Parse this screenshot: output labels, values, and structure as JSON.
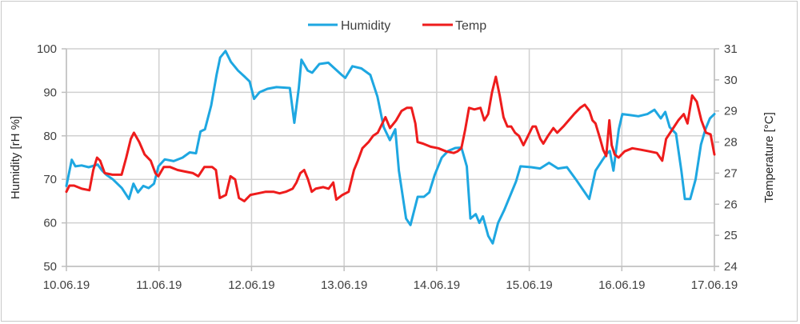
{
  "chart_data": {
    "type": "line",
    "title": "",
    "legend": {
      "position": "top",
      "entries": [
        "Humidity",
        "Temp"
      ]
    },
    "xlabel": "",
    "ylabel": "Humidity [rH %]",
    "y2label": "Temperature [°C]",
    "ylim": [
      50,
      100
    ],
    "y2lim": [
      24,
      31
    ],
    "yticks": [
      50,
      60,
      70,
      80,
      90,
      100
    ],
    "y2ticks": [
      24,
      25,
      26,
      27,
      28,
      29,
      30,
      31
    ],
    "x_ticks": [
      "10.06.19",
      "11.06.19",
      "12.06.19",
      "13.06.19",
      "14.06.19",
      "15.06.19",
      "16.06.19",
      "17.06.19"
    ],
    "grid": true,
    "series": [
      {
        "name": "Humidity",
        "axis": "left",
        "color": "#1ea7e1",
        "points": [
          [
            0.0,
            68.5
          ],
          [
            0.06,
            74.5
          ],
          [
            0.1,
            73
          ],
          [
            0.17,
            73.2
          ],
          [
            0.25,
            72.8
          ],
          [
            0.35,
            73.4
          ],
          [
            0.4,
            72
          ],
          [
            0.45,
            71
          ],
          [
            0.52,
            70
          ],
          [
            0.62,
            68
          ],
          [
            0.7,
            65.5
          ],
          [
            0.75,
            69
          ],
          [
            0.8,
            67
          ],
          [
            0.86,
            68.5
          ],
          [
            0.92,
            68
          ],
          [
            0.98,
            69
          ],
          [
            1.03,
            73
          ],
          [
            1.1,
            74.6
          ],
          [
            1.2,
            74.2
          ],
          [
            1.3,
            75
          ],
          [
            1.38,
            76.2
          ],
          [
            1.45,
            76
          ],
          [
            1.5,
            81
          ],
          [
            1.55,
            81.5
          ],
          [
            1.62,
            87
          ],
          [
            1.68,
            94
          ],
          [
            1.72,
            98
          ],
          [
            1.78,
            99.5
          ],
          [
            1.84,
            97
          ],
          [
            1.92,
            95
          ],
          [
            2.0,
            93.5
          ],
          [
            2.05,
            92.5
          ],
          [
            2.1,
            88.5
          ],
          [
            2.16,
            90
          ],
          [
            2.25,
            90.8
          ],
          [
            2.35,
            91.2
          ],
          [
            2.5,
            91
          ],
          [
            2.55,
            83
          ],
          [
            2.6,
            91
          ],
          [
            2.63,
            97.5
          ],
          [
            2.7,
            95
          ],
          [
            2.75,
            94.5
          ],
          [
            2.83,
            96.5
          ],
          [
            2.93,
            96.8
          ],
          [
            3.0,
            95.5
          ],
          [
            3.08,
            94
          ],
          [
            3.12,
            93.3
          ],
          [
            3.2,
            96
          ],
          [
            3.3,
            95.5
          ],
          [
            3.4,
            94
          ],
          [
            3.48,
            89
          ],
          [
            3.55,
            82
          ],
          [
            3.62,
            79
          ],
          [
            3.68,
            81.5
          ],
          [
            3.72,
            72
          ],
          [
            3.8,
            61
          ],
          [
            3.85,
            59.5
          ],
          [
            3.93,
            66
          ],
          [
            4.0,
            66
          ],
          [
            4.06,
            67
          ],
          [
            4.12,
            71
          ],
          [
            4.2,
            75
          ],
          [
            4.27,
            76.5
          ],
          [
            4.35,
            77.2
          ],
          [
            4.42,
            77.3
          ],
          [
            4.48,
            73
          ],
          [
            4.52,
            61
          ],
          [
            4.58,
            62
          ],
          [
            4.62,
            60
          ],
          [
            4.66,
            61.5
          ],
          [
            4.72,
            57
          ],
          [
            4.77,
            55.3
          ],
          [
            4.83,
            60
          ],
          [
            4.9,
            63
          ],
          [
            4.98,
            67
          ],
          [
            5.03,
            69.5
          ],
          [
            5.08,
            73
          ],
          [
            5.2,
            72.8
          ],
          [
            5.3,
            72.5
          ],
          [
            5.4,
            73.8
          ],
          [
            5.5,
            72.5
          ],
          [
            5.6,
            72.8
          ],
          [
            5.7,
            70
          ],
          [
            5.8,
            67
          ],
          [
            5.85,
            65.5
          ],
          [
            5.92,
            72
          ],
          [
            6.0,
            74.5
          ],
          [
            6.05,
            76
          ],
          [
            6.08,
            76.5
          ],
          [
            6.12,
            72
          ],
          [
            6.18,
            81.5
          ],
          [
            6.22,
            85
          ],
          [
            6.3,
            84.8
          ],
          [
            6.4,
            84.5
          ],
          [
            6.5,
            85
          ],
          [
            6.58,
            86
          ],
          [
            6.65,
            84
          ],
          [
            6.7,
            85.5
          ],
          [
            6.75,
            82
          ],
          [
            6.82,
            80.5
          ],
          [
            6.88,
            72
          ],
          [
            6.92,
            65.5
          ],
          [
            6.98,
            65.5
          ],
          [
            7.04,
            70
          ],
          [
            7.1,
            78
          ],
          [
            7.15,
            81.5
          ],
          [
            7.2,
            84
          ],
          [
            7.25,
            85
          ]
        ]
      },
      {
        "name": "Temp",
        "axis": "right",
        "color": "#ee1c1c",
        "points": [
          [
            0.0,
            26.4
          ],
          [
            0.04,
            26.6
          ],
          [
            0.1,
            26.6
          ],
          [
            0.2,
            26.5
          ],
          [
            0.3,
            26.45
          ],
          [
            0.35,
            27.1
          ],
          [
            0.4,
            27.5
          ],
          [
            0.44,
            27.4
          ],
          [
            0.5,
            27.0
          ],
          [
            0.6,
            26.95
          ],
          [
            0.72,
            26.95
          ],
          [
            0.78,
            27.5
          ],
          [
            0.84,
            28.1
          ],
          [
            0.88,
            28.3
          ],
          [
            0.95,
            28.0
          ],
          [
            1.02,
            27.6
          ],
          [
            1.1,
            27.4
          ],
          [
            1.16,
            27.0
          ],
          [
            1.2,
            26.9
          ],
          [
            1.27,
            27.2
          ],
          [
            1.35,
            27.2
          ],
          [
            1.45,
            27.1
          ],
          [
            1.55,
            27.05
          ],
          [
            1.65,
            27.0
          ],
          [
            1.72,
            26.9
          ],
          [
            1.8,
            27.2
          ],
          [
            1.9,
            27.2
          ],
          [
            1.95,
            27.1
          ],
          [
            2.0,
            26.2
          ],
          [
            2.08,
            26.3
          ],
          [
            2.14,
            26.9
          ],
          [
            2.2,
            26.8
          ],
          [
            2.25,
            26.2
          ],
          [
            2.32,
            26.1
          ],
          [
            2.4,
            26.3
          ],
          [
            2.5,
            26.35
          ],
          [
            2.6,
            26.4
          ],
          [
            2.7,
            26.4
          ],
          [
            2.78,
            26.35
          ],
          [
            2.86,
            26.4
          ],
          [
            2.95,
            26.5
          ],
          [
            3.0,
            26.7
          ],
          [
            3.05,
            27.0
          ],
          [
            3.1,
            27.1
          ],
          [
            3.15,
            26.8
          ],
          [
            3.2,
            26.4
          ],
          [
            3.25,
            26.5
          ],
          [
            3.35,
            26.55
          ],
          [
            3.42,
            26.5
          ],
          [
            3.48,
            26.7
          ],
          [
            3.52,
            26.15
          ],
          [
            3.6,
            26.3
          ],
          [
            3.68,
            26.4
          ],
          [
            3.75,
            27.1
          ],
          [
            3.8,
            27.4
          ],
          [
            3.86,
            27.8
          ],
          [
            3.94,
            28.0
          ],
          [
            4.0,
            28.2
          ],
          [
            4.06,
            28.3
          ],
          [
            4.12,
            28.6
          ],
          [
            4.16,
            28.8
          ],
          [
            4.22,
            28.45
          ],
          [
            4.3,
            28.7
          ],
          [
            4.37,
            29.0
          ],
          [
            4.44,
            29.1
          ],
          [
            4.5,
            29.1
          ],
          [
            4.55,
            28.6
          ],
          [
            4.58,
            28.0
          ],
          [
            4.65,
            27.95
          ],
          [
            4.75,
            27.85
          ],
          [
            4.85,
            27.8
          ],
          [
            4.95,
            27.7
          ],
          [
            5.05,
            27.65
          ],
          [
            5.1,
            27.7
          ],
          [
            5.15,
            27.8
          ],
          [
            5.2,
            28.4
          ],
          [
            5.25,
            29.1
          ],
          [
            5.32,
            29.05
          ],
          [
            5.4,
            29.1
          ],
          [
            5.45,
            28.7
          ],
          [
            5.5,
            28.9
          ],
          [
            5.55,
            29.6
          ],
          [
            5.6,
            30.1
          ],
          [
            5.65,
            29.5
          ],
          [
            5.7,
            28.8
          ],
          [
            5.75,
            28.5
          ],
          [
            5.8,
            28.5
          ],
          [
            5.85,
            28.3
          ],
          [
            5.9,
            28.2
          ],
          [
            5.96,
            27.9
          ],
          [
            6.02,
            28.2
          ],
          [
            6.08,
            28.5
          ],
          [
            6.12,
            28.5
          ],
          [
            6.18,
            28.1
          ],
          [
            6.22,
            27.95
          ],
          [
            6.28,
            28.2
          ],
          [
            6.35,
            28.45
          ],
          [
            6.4,
            28.3
          ],
          [
            6.48,
            28.5
          ],
          [
            6.55,
            28.7
          ],
          [
            6.62,
            28.9
          ],
          [
            6.7,
            29.1
          ],
          [
            6.76,
            29.2
          ],
          [
            6.82,
            29.0
          ],
          [
            6.86,
            28.7
          ],
          [
            6.9,
            28.6
          ],
          [
            6.96,
            28.1
          ],
          [
            7.0,
            27.75
          ],
          [
            7.04,
            27.55
          ],
          [
            7.08,
            28.7
          ],
          [
            7.11,
            27.9
          ],
          [
            7.15,
            27.6
          ],
          [
            7.2,
            27.5
          ],
          [
            7.28,
            27.7
          ],
          [
            7.38,
            27.8
          ],
          [
            7.5,
            27.75
          ],
          [
            7.6,
            27.7
          ],
          [
            7.7,
            27.65
          ],
          [
            7.77,
            27.4
          ],
          [
            7.82,
            28.1
          ],
          [
            7.9,
            28.4
          ],
          [
            7.98,
            28.7
          ],
          [
            8.05,
            28.9
          ],
          [
            8.1,
            28.6
          ],
          [
            8.16,
            29.5
          ],
          [
            8.22,
            29.3
          ],
          [
            8.28,
            28.7
          ],
          [
            8.34,
            28.3
          ],
          [
            8.4,
            28.25
          ],
          [
            8.45,
            27.6
          ]
        ]
      }
    ],
    "x_domain_days": [
      0,
      7
    ]
  },
  "ui": {
    "legend_humidity": "Humidity",
    "legend_temp": "Temp"
  }
}
